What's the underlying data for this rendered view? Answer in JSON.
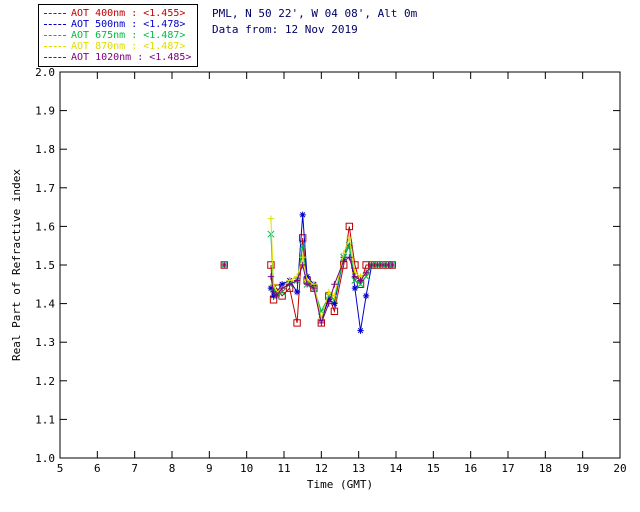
{
  "header": {
    "site_line": "PML, N 50 22', W 04 08', Alt 0m",
    "date_line": "Data from: 12 Nov 2019",
    "text_color": "#000066"
  },
  "legend": {
    "items": [
      {
        "label": "AOT  400nm : <1.455>",
        "color": "#c00000",
        "marker": "square"
      },
      {
        "label": "AOT  500nm : <1.478>",
        "color": "#0000cc",
        "marker": "asterisk"
      },
      {
        "label": "AOT  675nm : <1.487>",
        "color": "#00bb44",
        "marker": "x"
      },
      {
        "label": "AOT  870nm : <1.487>",
        "color": "#dddd00",
        "marker": "plus"
      },
      {
        "label": "AOT 1020nm : <1.485>",
        "color": "#800080",
        "marker": "plus"
      }
    ]
  },
  "chart_data": {
    "type": "line",
    "title": "",
    "xlabel": "Time (GMT)",
    "ylabel": "Real Part of Refractive index",
    "xlim": [
      5,
      20
    ],
    "ylim": [
      1.0,
      2.0
    ],
    "grid": false,
    "legend_position": "top-left",
    "xticks": [
      5,
      6,
      7,
      8,
      9,
      10,
      11,
      12,
      13,
      14,
      15,
      16,
      17,
      18,
      19,
      20
    ],
    "xtick_labels": [
      "5",
      "6",
      "7",
      "8",
      "9",
      "10",
      "11",
      "12",
      "13",
      "14",
      "15",
      "16",
      "17",
      "18",
      "19",
      "20"
    ],
    "yticks": [
      1.0,
      1.1,
      1.2,
      1.3,
      1.4,
      1.5,
      1.6,
      1.7,
      1.8,
      1.9,
      2.0
    ],
    "ytick_labels": [
      "1.0",
      "1.1",
      "1.2",
      "1.3",
      "1.4",
      "1.5",
      "1.6",
      "1.7",
      "1.8",
      "1.9",
      "2.0"
    ],
    "gap_break": 0.8,
    "x": [
      9.4,
      10.65,
      10.72,
      10.8,
      10.95,
      11.15,
      11.35,
      11.5,
      11.62,
      11.8,
      12.0,
      12.2,
      12.35,
      12.6,
      12.75,
      12.9,
      13.05,
      13.2,
      13.35,
      13.5,
      13.65,
      13.8,
      13.9
    ],
    "series": [
      {
        "name": "AOT 400nm",
        "mean": "<1.455>",
        "color": "#c00000",
        "marker": "square",
        "values": [
          1.5,
          1.5,
          1.41,
          1.44,
          1.42,
          1.44,
          1.35,
          1.57,
          1.46,
          1.44,
          1.35,
          1.42,
          1.38,
          1.5,
          1.6,
          1.5,
          1.45,
          1.5,
          1.5,
          1.5,
          1.5,
          1.5,
          1.5
        ]
      },
      {
        "name": "AOT 500nm",
        "mean": "<1.478>",
        "color": "#0000cc",
        "marker": "asterisk",
        "values": [
          1.5,
          1.44,
          1.42,
          1.43,
          1.45,
          1.46,
          1.43,
          1.63,
          1.47,
          1.45,
          1.36,
          1.41,
          1.4,
          1.52,
          1.55,
          1.44,
          1.33,
          1.42,
          1.5,
          1.5,
          1.5,
          1.5,
          1.5
        ]
      },
      {
        "name": "AOT 675nm",
        "mean": "<1.487>",
        "color": "#00bb44",
        "marker": "x",
        "values": [
          1.5,
          1.58,
          1.44,
          1.42,
          1.43,
          1.45,
          1.46,
          1.55,
          1.45,
          1.44,
          1.38,
          1.42,
          1.41,
          1.52,
          1.55,
          1.46,
          1.45,
          1.47,
          1.5,
          1.5,
          1.5,
          1.5,
          1.5
        ]
      },
      {
        "name": "AOT 870nm",
        "mean": "<1.487>",
        "color": "#dddd00",
        "marker": "plus",
        "values": [
          1.5,
          1.62,
          1.45,
          1.43,
          1.44,
          1.46,
          1.47,
          1.52,
          1.46,
          1.45,
          1.36,
          1.43,
          1.42,
          1.53,
          1.57,
          1.48,
          1.47,
          1.48,
          1.5,
          1.5,
          1.5,
          1.5,
          1.5
        ]
      },
      {
        "name": "AOT 1020nm",
        "mean": "<1.485>",
        "color": "#800080",
        "marker": "plus",
        "values": [
          1.5,
          1.47,
          1.43,
          1.42,
          1.44,
          1.45,
          1.46,
          1.5,
          1.45,
          1.44,
          1.35,
          1.4,
          1.45,
          1.51,
          1.52,
          1.47,
          1.46,
          1.48,
          1.5,
          1.5,
          1.5,
          1.5,
          1.5
        ]
      }
    ]
  }
}
